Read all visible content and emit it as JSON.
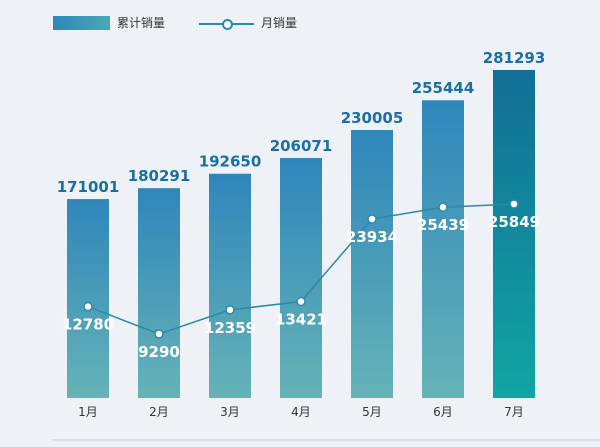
{
  "chart_data": {
    "type": "bar",
    "categories": [
      "1月",
      "2月",
      "3月",
      "4月",
      "5月",
      "6月",
      "7月"
    ],
    "series": [
      {
        "name": "累计销量",
        "type": "bar",
        "values": [
          171001,
          180291,
          192650,
          206071,
          230005,
          255444,
          281293
        ]
      },
      {
        "name": "月销量",
        "type": "line",
        "values": [
          12780,
          9290,
          12359,
          13421,
          23934,
          25439,
          25849
        ]
      }
    ],
    "legend_position": "top-left",
    "grid": false,
    "colors": {
      "bar_top": "#2f86ba",
      "bar_bottom": "#66b3b7",
      "last_bar_top": "#126e96",
      "last_bar_bottom": "#10a5a3",
      "line": "#2a8aa8",
      "bar_label": "#1b6fa3"
    }
  }
}
